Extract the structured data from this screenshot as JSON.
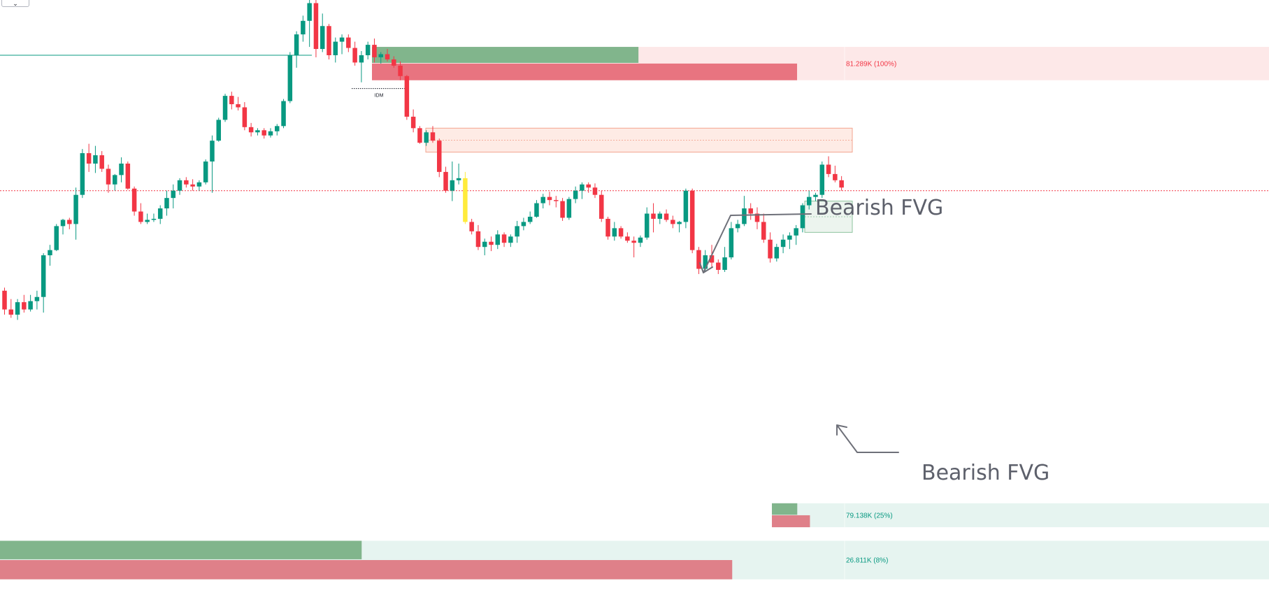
{
  "chart_data": {
    "type": "candlestick",
    "price_range": [
      76.2,
      81.85
    ],
    "colors": {
      "bull": "#089981",
      "bear": "#f23645",
      "highlight": "#ffeb3b",
      "ref_line": "#089981",
      "dotted_level": "#f23645"
    },
    "candles": [
      [
        79.06,
        79.09,
        78.83,
        78.88
      ],
      [
        78.88,
        78.98,
        78.8,
        78.83
      ],
      [
        78.83,
        78.98,
        78.78,
        78.95
      ],
      [
        78.95,
        79.02,
        78.85,
        78.88
      ],
      [
        78.88,
        79.02,
        78.86,
        78.96
      ],
      [
        78.96,
        79.06,
        78.88,
        79.0
      ],
      [
        79.0,
        79.42,
        78.85,
        79.4
      ],
      [
        79.4,
        79.5,
        79.3,
        79.45
      ],
      [
        79.45,
        79.7,
        79.44,
        79.68
      ],
      [
        79.68,
        79.75,
        79.6,
        79.74
      ],
      [
        79.74,
        79.76,
        79.65,
        79.7
      ],
      [
        79.7,
        80.05,
        79.55,
        79.98
      ],
      [
        79.98,
        80.42,
        79.95,
        80.38
      ],
      [
        80.38,
        80.47,
        80.2,
        80.28
      ],
      [
        80.28,
        80.45,
        80.19,
        80.36
      ],
      [
        80.36,
        80.4,
        80.2,
        80.23
      ],
      [
        80.23,
        80.27,
        80.0,
        80.08
      ],
      [
        80.08,
        80.18,
        80.02,
        80.17
      ],
      [
        80.17,
        80.34,
        80.1,
        80.28
      ],
      [
        80.28,
        80.3,
        80.03,
        80.04
      ],
      [
        80.04,
        80.06,
        79.78,
        79.82
      ],
      [
        79.82,
        79.9,
        79.7,
        79.72
      ],
      [
        79.72,
        79.8,
        79.7,
        79.74
      ],
      [
        79.74,
        79.8,
        79.72,
        79.75
      ],
      [
        79.75,
        79.88,
        79.7,
        79.85
      ],
      [
        79.85,
        80.02,
        79.78,
        79.95
      ],
      [
        79.95,
        80.08,
        79.85,
        80.02
      ],
      [
        80.02,
        80.14,
        79.98,
        80.12
      ],
      [
        80.12,
        80.15,
        80.05,
        80.08
      ],
      [
        80.08,
        80.13,
        80.02,
        80.06
      ],
      [
        80.06,
        80.12,
        80.02,
        80.1
      ],
      [
        80.1,
        80.32,
        80.08,
        80.3
      ],
      [
        80.3,
        80.55,
        80.0,
        80.5
      ],
      [
        80.5,
        80.72,
        80.49,
        80.7
      ],
      [
        80.7,
        80.95,
        80.68,
        80.93
      ],
      [
        80.93,
        80.97,
        80.8,
        80.85
      ],
      [
        80.85,
        80.92,
        80.79,
        80.82
      ],
      [
        80.82,
        80.87,
        80.6,
        80.63
      ],
      [
        80.63,
        80.67,
        80.54,
        80.58
      ],
      [
        80.58,
        80.62,
        80.55,
        80.6
      ],
      [
        80.6,
        80.62,
        80.52,
        80.55
      ],
      [
        80.55,
        80.62,
        80.53,
        80.59
      ],
      [
        80.59,
        80.66,
        80.55,
        80.64
      ],
      [
        80.64,
        80.9,
        80.62,
        80.88
      ],
      [
        80.88,
        81.35,
        80.86,
        81.32
      ],
      [
        81.32,
        81.55,
        81.2,
        81.52
      ],
      [
        81.52,
        81.7,
        81.45,
        81.65
      ],
      [
        81.65,
        81.85,
        81.4,
        81.82
      ],
      [
        81.82,
        81.85,
        81.3,
        81.38
      ],
      [
        81.38,
        81.72,
        81.35,
        81.6
      ],
      [
        81.6,
        81.62,
        81.28,
        81.32
      ],
      [
        81.32,
        81.49,
        81.25,
        81.45
      ],
      [
        81.45,
        81.52,
        81.33,
        81.49
      ],
      [
        81.49,
        81.52,
        81.35,
        81.39
      ],
      [
        81.39,
        81.45,
        81.22,
        81.25
      ],
      [
        81.25,
        81.36,
        81.06,
        81.32
      ],
      [
        81.32,
        81.45,
        81.28,
        81.42
      ],
      [
        81.42,
        81.48,
        81.25,
        81.3
      ],
      [
        81.3,
        81.35,
        81.24,
        81.33
      ],
      [
        81.33,
        81.38,
        81.26,
        81.28
      ],
      [
        81.28,
        81.31,
        81.2,
        81.22
      ],
      [
        81.22,
        81.26,
        81.08,
        81.12
      ],
      [
        81.12,
        81.13,
        80.7,
        80.73
      ],
      [
        80.73,
        80.8,
        80.58,
        80.62
      ],
      [
        80.62,
        80.64,
        80.47,
        80.48
      ],
      [
        80.48,
        80.6,
        80.45,
        80.58
      ],
      [
        80.58,
        80.64,
        80.48,
        80.5
      ],
      [
        80.5,
        80.52,
        80.15,
        80.2
      ],
      [
        80.2,
        80.25,
        80.0,
        80.02
      ],
      [
        80.02,
        80.3,
        79.92,
        80.12
      ],
      [
        80.12,
        80.28,
        80.08,
        80.14
      ],
      [
        80.14,
        80.2,
        79.7,
        79.72
      ],
      [
        79.72,
        79.75,
        79.6,
        79.63
      ],
      [
        79.63,
        79.69,
        79.45,
        79.48
      ],
      [
        79.48,
        79.56,
        79.4,
        79.53
      ],
      [
        79.53,
        79.58,
        79.44,
        79.5
      ],
      [
        79.5,
        79.64,
        79.46,
        79.6
      ],
      [
        79.6,
        79.62,
        79.48,
        79.52
      ],
      [
        79.52,
        79.6,
        79.48,
        79.58
      ],
      [
        79.58,
        79.73,
        79.52,
        79.68
      ],
      [
        79.68,
        79.76,
        79.64,
        79.72
      ],
      [
        79.72,
        79.82,
        79.7,
        79.77
      ],
      [
        79.77,
        79.93,
        79.76,
        79.9
      ],
      [
        79.9,
        79.99,
        79.85,
        79.96
      ],
      [
        79.96,
        80.01,
        79.88,
        79.93
      ],
      [
        79.93,
        79.97,
        79.86,
        79.92
      ],
      [
        79.92,
        79.95,
        79.73,
        79.76
      ],
      [
        79.76,
        79.96,
        79.74,
        79.94
      ],
      [
        79.94,
        80.06,
        79.9,
        80.02
      ],
      [
        80.02,
        80.1,
        79.94,
        80.08
      ],
      [
        80.08,
        80.1,
        80.0,
        80.05
      ],
      [
        80.05,
        80.09,
        79.95,
        79.98
      ],
      [
        79.98,
        80.02,
        79.72,
        79.75
      ],
      [
        79.75,
        79.77,
        79.55,
        79.58
      ],
      [
        79.58,
        79.72,
        79.54,
        79.66
      ],
      [
        79.66,
        79.68,
        79.56,
        79.58
      ],
      [
        79.58,
        79.62,
        79.52,
        79.54
      ],
      [
        79.54,
        79.58,
        79.38,
        79.52
      ],
      [
        79.52,
        79.59,
        79.48,
        79.57
      ],
      [
        79.57,
        79.86,
        79.55,
        79.8
      ],
      [
        79.8,
        79.9,
        79.62,
        79.75
      ],
      [
        79.75,
        79.82,
        79.7,
        79.8
      ],
      [
        79.8,
        79.84,
        79.72,
        79.74
      ],
      [
        79.74,
        79.78,
        79.66,
        79.7
      ],
      [
        79.7,
        79.73,
        79.62,
        79.72
      ],
      [
        79.72,
        80.04,
        79.66,
        80.02
      ],
      [
        80.02,
        80.04,
        79.42,
        79.45
      ],
      [
        79.45,
        79.48,
        79.22,
        79.27
      ],
      [
        79.27,
        79.45,
        79.25,
        79.4
      ],
      [
        79.4,
        79.5,
        79.28,
        79.33
      ],
      [
        79.33,
        79.36,
        79.22,
        79.26
      ],
      [
        79.26,
        79.48,
        79.24,
        79.38
      ],
      [
        79.38,
        79.72,
        79.36,
        79.66
      ],
      [
        79.66,
        79.74,
        79.62,
        79.7
      ],
      [
        79.7,
        79.97,
        79.68,
        79.85
      ],
      [
        79.85,
        79.9,
        79.74,
        79.8
      ],
      [
        79.8,
        79.86,
        79.65,
        79.72
      ],
      [
        79.72,
        79.8,
        79.52,
        79.55
      ],
      [
        79.55,
        79.62,
        79.33,
        79.37
      ],
      [
        79.37,
        79.51,
        79.34,
        79.48
      ],
      [
        79.48,
        79.6,
        79.42,
        79.55
      ],
      [
        79.55,
        79.62,
        79.46,
        79.59
      ],
      [
        79.59,
        79.69,
        79.5,
        79.66
      ],
      [
        79.66,
        79.9,
        79.62,
        79.88
      ],
      [
        79.88,
        80.02,
        79.84,
        79.96
      ],
      [
        79.96,
        80.0,
        79.92,
        79.98
      ],
      [
        79.98,
        80.3,
        79.95,
        80.27
      ],
      [
        80.27,
        80.35,
        80.15,
        80.18
      ],
      [
        80.18,
        80.26,
        80.1,
        80.12
      ],
      [
        80.12,
        80.16,
        80.02,
        80.05
      ]
    ],
    "highlight_candle_index": 71,
    "horizontal_line_price": 81.32,
    "dotted_level_price": 80.02,
    "idm": {
      "label": "IDM",
      "price": 81.0
    },
    "bearish_fvg_upper": {
      "label": "Bearish FVG",
      "top": 80.62,
      "bottom": 80.39
    },
    "bearish_fvg_lower": {
      "label": "Bearish FVG",
      "top": 79.92,
      "bottom": 79.62
    },
    "volume_profiles": [
      {
        "label": "81.289K (100%)",
        "top": 81.4,
        "bottom": 81.08,
        "bull_fraction": 0.21,
        "bear_fraction": 0.335,
        "tone": "bear"
      },
      {
        "label": "79.138K (25%)",
        "top": 77.02,
        "bottom": 76.79,
        "bull_fraction": 0.02,
        "bear_fraction": 0.03,
        "tone": "bull"
      },
      {
        "label": "26.811K (8%)",
        "top": 76.66,
        "bottom": 76.29,
        "bull_fraction": 0.285,
        "bear_fraction": 0.577,
        "tone": "bull"
      }
    ]
  }
}
